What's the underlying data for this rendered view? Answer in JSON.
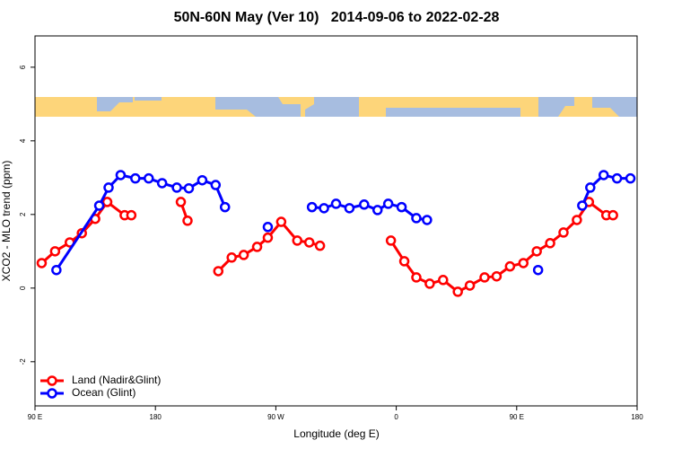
{
  "chart_data": {
    "type": "line",
    "title": "50N-60N May (Ver 10)   2014-09-06 to 2022-02-28",
    "xlabel": "Longitude (deg E)",
    "ylabel": "XCO2 - MLO trend (ppm)",
    "xlim": [
      90,
      540
    ],
    "ylim": [
      -3.2,
      6.85
    ],
    "xticks": [
      {
        "value": 90,
        "label": "90 E"
      },
      {
        "value": 180,
        "label": "180"
      },
      {
        "value": 270,
        "label": "90 W"
      },
      {
        "value": 360,
        "label": "0"
      },
      {
        "value": 450,
        "label": "90 E"
      },
      {
        "value": 540,
        "label": "180"
      }
    ],
    "yticks": [
      -2,
      0,
      2,
      4,
      6
    ],
    "legend": "bottom-left",
    "series": [
      {
        "name": "Land (Nadir&Glint)",
        "color": "#ff0000",
        "x": [
          95,
          105,
          116,
          125,
          135,
          144,
          157,
          162,
          null,
          199,
          204,
          null,
          227,
          237,
          246,
          256,
          264,
          274,
          286,
          295,
          303,
          null,
          356,
          366,
          375,
          385,
          395,
          406,
          415,
          426,
          435,
          445,
          455,
          465,
          475,
          485,
          495,
          504,
          517,
          522
        ],
        "values": [
          0.68,
          1.0,
          1.24,
          1.49,
          1.88,
          2.34,
          1.98,
          1.98,
          null,
          2.34,
          1.83,
          null,
          0.46,
          0.83,
          0.9,
          1.12,
          1.37,
          1.8,
          1.29,
          1.24,
          1.15,
          null,
          1.29,
          0.73,
          0.29,
          0.12,
          0.22,
          -0.1,
          0.07,
          0.29,
          0.32,
          0.59,
          0.68,
          1.0,
          1.22,
          1.51,
          1.85,
          2.34,
          1.98,
          1.98
        ]
      },
      {
        "name": "Ocean (Glint)",
        "color": "#0000ff",
        "x": [
          106,
          138,
          145,
          154,
          165,
          175,
          185,
          196,
          205,
          215,
          225,
          232,
          null,
          264,
          null,
          297,
          306,
          315,
          325,
          336,
          346,
          354,
          364,
          375,
          383,
          null,
          466,
          null,
          499,
          505,
          515,
          525,
          535
        ],
        "values": [
          0.49,
          2.24,
          2.73,
          3.07,
          2.98,
          2.98,
          2.85,
          2.73,
          2.71,
          2.93,
          2.8,
          2.2,
          null,
          1.66,
          null,
          2.2,
          2.17,
          2.29,
          2.17,
          2.27,
          2.12,
          2.29,
          2.2,
          1.9,
          1.85,
          null,
          0.49,
          null,
          2.24,
          2.73,
          3.07,
          2.98,
          2.98
        ]
      }
    ]
  }
}
